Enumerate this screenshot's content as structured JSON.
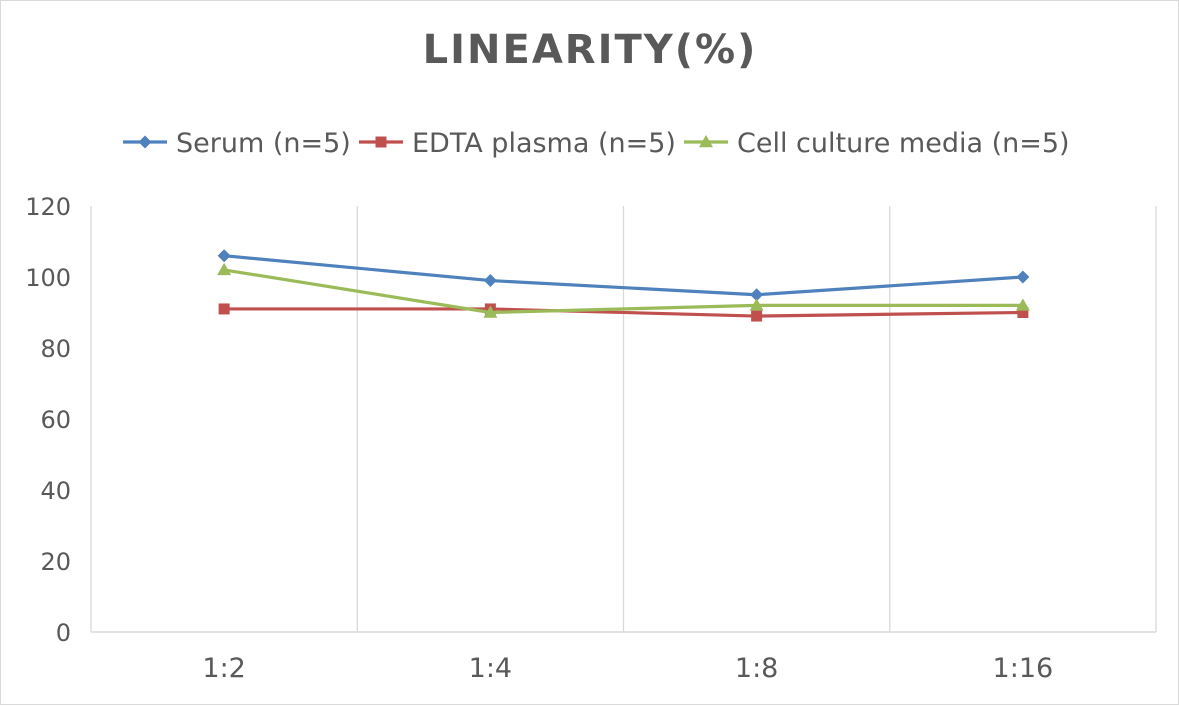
{
  "chart_data": {
    "type": "line",
    "title": "LINEARITY(%)",
    "xlabel": "",
    "ylabel": "",
    "categories": [
      "1:2",
      "1:4",
      "1:8",
      "1:16"
    ],
    "ylim": [
      0,
      120
    ],
    "yticks": [
      0,
      20,
      40,
      60,
      80,
      100,
      120
    ],
    "grid": "vertical",
    "legend_position": "top",
    "series": [
      {
        "name": "Serum (n=5)",
        "values": [
          106,
          99,
          95,
          100
        ],
        "color": "#4f81bd",
        "marker": "diamond"
      },
      {
        "name": "EDTA plasma (n=5)",
        "values": [
          91,
          91,
          89,
          90
        ],
        "color": "#c0504d",
        "marker": "square"
      },
      {
        "name": "Cell culture media (n=5)",
        "values": [
          102,
          90,
          92,
          92
        ],
        "color": "#9bbb59",
        "marker": "triangle"
      }
    ]
  }
}
